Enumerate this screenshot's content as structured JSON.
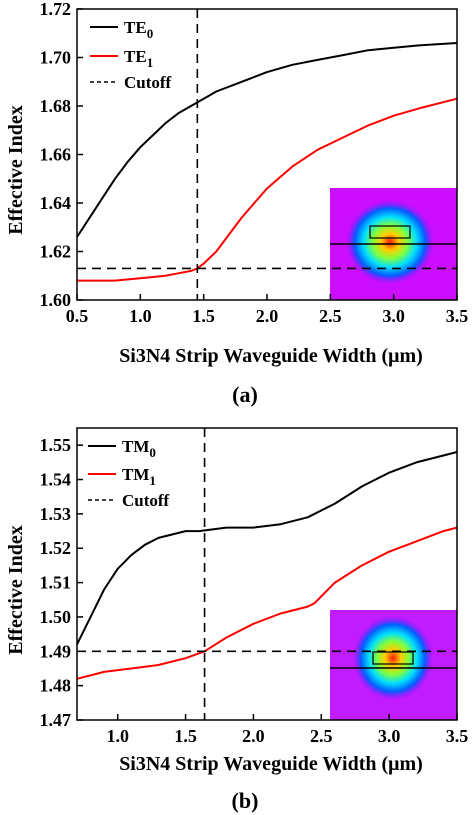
{
  "colors": {
    "te0": "#000000",
    "te1": "#ff0000",
    "cutoff": "#000000"
  },
  "chart_data": [
    {
      "type": "line",
      "caption": "(a)",
      "xlabel": "Si3N4 Strip Waveguide Width (μm)",
      "ylabel": "Effective Index",
      "xlim": [
        0.5,
        3.5
      ],
      "ylim": [
        1.6,
        1.72
      ],
      "xticks": [
        0.5,
        1.0,
        1.5,
        2.0,
        2.5,
        3.0,
        3.5
      ],
      "xtick_labels": [
        "0.5",
        "1.0",
        "1.5",
        "2.0",
        "2.5",
        "3.0",
        "3.5"
      ],
      "yticks": [
        1.6,
        1.62,
        1.64,
        1.66,
        1.68,
        1.7,
        1.72
      ],
      "ytick_labels": [
        "1.60",
        "1.62",
        "1.64",
        "1.66",
        "1.68",
        "1.70",
        "1.72"
      ],
      "legend_position": "top-left",
      "cutoff": {
        "x": 1.45,
        "y": 1.613,
        "label": "Cutoff"
      },
      "series": [
        {
          "name": "TE",
          "subscript": "0",
          "color": "#000000",
          "x": [
            0.5,
            0.6,
            0.7,
            0.8,
            0.9,
            1.0,
            1.1,
            1.2,
            1.3,
            1.4,
            1.5,
            1.6,
            1.8,
            2.0,
            2.2,
            2.4,
            2.6,
            2.8,
            3.0,
            3.2,
            3.5
          ],
          "y": [
            1.626,
            1.634,
            1.642,
            1.65,
            1.657,
            1.663,
            1.668,
            1.673,
            1.677,
            1.68,
            1.683,
            1.686,
            1.69,
            1.694,
            1.697,
            1.699,
            1.701,
            1.703,
            1.704,
            1.705,
            1.706
          ]
        },
        {
          "name": "TE",
          "subscript": "1",
          "color": "#ff0000",
          "x": [
            0.5,
            0.8,
            1.0,
            1.2,
            1.3,
            1.4,
            1.45,
            1.5,
            1.6,
            1.7,
            1.8,
            1.9,
            2.0,
            2.2,
            2.4,
            2.6,
            2.8,
            3.0,
            3.2,
            3.5
          ],
          "y": [
            1.608,
            1.608,
            1.609,
            1.61,
            1.611,
            1.612,
            1.613,
            1.615,
            1.62,
            1.627,
            1.634,
            1.64,
            1.646,
            1.655,
            1.662,
            1.667,
            1.672,
            1.676,
            1.679,
            1.683
          ]
        }
      ]
    },
    {
      "type": "line",
      "caption": "(b)",
      "xlabel": "Si3N4 Strip Waveguide Width (μm)",
      "ylabel": "Effective Index",
      "xlim": [
        0.7,
        3.5
      ],
      "ylim": [
        1.47,
        1.555
      ],
      "xticks": [
        1.0,
        1.5,
        2.0,
        2.5,
        3.0,
        3.5
      ],
      "xtick_labels": [
        "1.0",
        "1.5",
        "2.0",
        "2.5",
        "3.0",
        "3.5"
      ],
      "yticks": [
        1.47,
        1.48,
        1.49,
        1.5,
        1.51,
        1.52,
        1.53,
        1.54,
        1.55
      ],
      "ytick_labels": [
        "1.47",
        "1.48",
        "1.49",
        "1.50",
        "1.51",
        "1.52",
        "1.53",
        "1.54",
        "1.55"
      ],
      "legend_position": "top-left",
      "cutoff": {
        "x": 1.64,
        "y": 1.49,
        "label": "Cutoff"
      },
      "series": [
        {
          "name": "TM",
          "subscript": "0",
          "color": "#000000",
          "x": [
            0.7,
            0.8,
            0.9,
            1.0,
            1.1,
            1.2,
            1.3,
            1.4,
            1.5,
            1.6,
            1.8,
            2.0,
            2.2,
            2.4,
            2.6,
            2.8,
            3.0,
            3.2,
            3.4,
            3.5
          ],
          "y": [
            1.492,
            1.5,
            1.508,
            1.514,
            1.518,
            1.521,
            1.523,
            1.524,
            1.525,
            1.525,
            1.526,
            1.526,
            1.527,
            1.529,
            1.533,
            1.538,
            1.542,
            1.545,
            1.547,
            1.548
          ]
        },
        {
          "name": "TM",
          "subscript": "1",
          "color": "#ff0000",
          "x": [
            0.7,
            0.9,
            1.1,
            1.3,
            1.5,
            1.64,
            1.8,
            2.0,
            2.2,
            2.4,
            2.45,
            2.5,
            2.6,
            2.8,
            3.0,
            3.2,
            3.4,
            3.5
          ],
          "y": [
            1.482,
            1.484,
            1.485,
            1.486,
            1.488,
            1.49,
            1.494,
            1.498,
            1.501,
            1.503,
            1.504,
            1.506,
            1.51,
            1.515,
            1.519,
            1.522,
            1.525,
            1.526
          ]
        }
      ]
    }
  ]
}
